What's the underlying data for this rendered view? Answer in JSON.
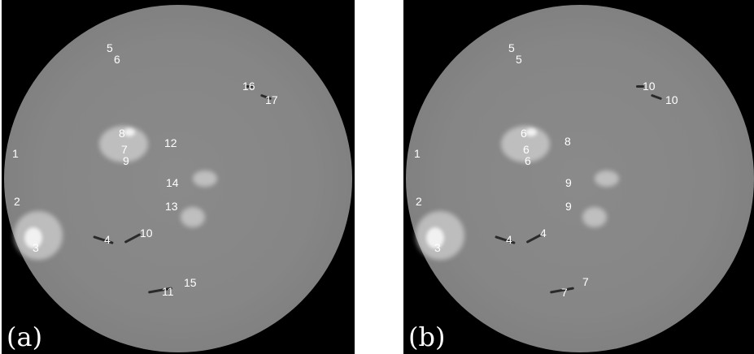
{
  "panels": [
    {
      "tag": "(a)",
      "labels": [
        "5",
        "6",
        "16",
        "17",
        "8",
        "12",
        "7",
        "9",
        "1",
        "14",
        "2",
        "13",
        "4",
        "10",
        "3",
        "15",
        "11"
      ]
    },
    {
      "tag": "(b)",
      "labels": [
        "5",
        "5",
        "10",
        "10",
        "6",
        "8",
        "6",
        "6",
        "1",
        "9",
        "2",
        "9",
        "4",
        "4",
        "3",
        "7",
        "7"
      ]
    }
  ]
}
